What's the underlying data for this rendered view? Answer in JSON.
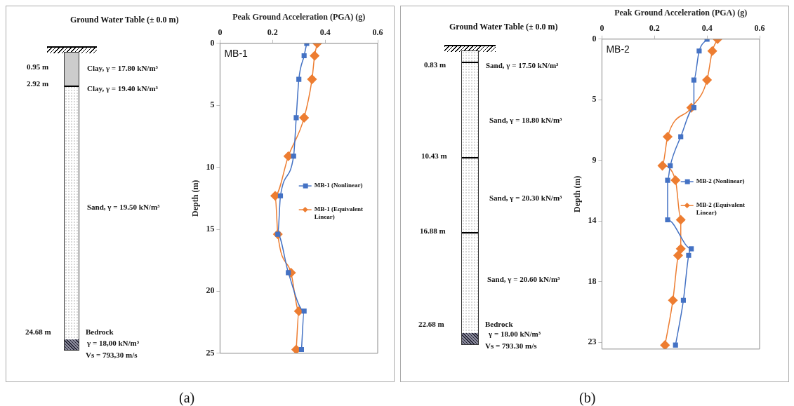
{
  "chart_data": [
    {
      "type": "other",
      "title": "Ground Water Table (± 0.0 m)",
      "annotations": [
        "0.95 m",
        "Clay, γ = 17.80 kN/m³",
        "2.92 m",
        "Clay, γ = 19.40 kN/m³",
        "Sand, γ = 19.50 kN/m³",
        "24.68 m",
        "Bedrock",
        "γ = 18,00 kN/m³",
        "Vs = 793,30 m/s",
        "(a)"
      ]
    },
    {
      "type": "line",
      "xlabel": "Peak Ground Acceleration (PGA) (g)",
      "ylabel": "Depth (m)",
      "xlim": [
        0,
        0.6
      ],
      "xticks": [
        0,
        0.2,
        0.4,
        0.6
      ],
      "ylim": [
        25,
        0
      ],
      "yticks": [
        0,
        5,
        10,
        15,
        20,
        25
      ],
      "grid": false,
      "legend": "right",
      "annotations": [
        "MB-1"
      ],
      "series": [
        {
          "name": "MB-1 (Nonlinear)",
          "color": "#4472c4",
          "marker": "square",
          "x": [
            0.33,
            0.32,
            0.3,
            0.29,
            0.28,
            0.23,
            0.22,
            0.26,
            0.32,
            0.31
          ],
          "values": [
            0,
            1.0,
            2.9,
            6.0,
            9.1,
            12.3,
            15.4,
            18.5,
            21.6,
            24.7
          ]
        },
        {
          "name": "MB-1 (Equivalent Linear)",
          "color": "#ed7d31",
          "marker": "diamond",
          "x": [
            0.37,
            0.36,
            0.35,
            0.32,
            0.26,
            0.21,
            0.22,
            0.27,
            0.3,
            0.29
          ],
          "values": [
            0,
            1.0,
            2.9,
            6.0,
            9.1,
            12.3,
            15.4,
            18.5,
            21.6,
            24.7
          ]
        }
      ]
    },
    {
      "type": "other",
      "title": "Ground Water Table (± 0.0 m)",
      "annotations": [
        "0.83 m",
        "Sand, γ = 17.50 kN/m³",
        "Sand, γ = 18.80 kN/m³",
        "10.43 m",
        "Sand, γ = 20.30 kN/m³",
        "16.88 m",
        "Sand, γ = 20.60 kN/m³",
        "22.68 m",
        "Bedrock",
        "γ = 18.00 kN/m³",
        "Vs = 793.30 m/s",
        "(b)"
      ]
    },
    {
      "type": "line",
      "xlabel": "Peak Ground Acceleration (PGA) (g)",
      "ylabel": "Depth (m)",
      "xlim": [
        0,
        0.6
      ],
      "xticks": [
        0,
        0.2,
        0.4,
        0.6
      ],
      "ylim": [
        23.5,
        0
      ],
      "yticks": [
        0,
        {
          "value": 4.6,
          "label": "5"
        },
        {
          "value": 9.2,
          "label": "9"
        },
        {
          "value": 13.8,
          "label": "14"
        },
        {
          "value": 18.4,
          "label": "18"
        },
        23
      ],
      "grid": false,
      "legend": "right",
      "annotations": [
        "MB-2"
      ],
      "series": [
        {
          "name": "MB-2 (Nonlinear)",
          "color": "#4472c4",
          "marker": "square",
          "x": [
            0.4,
            0.37,
            0.35,
            0.35,
            0.3,
            0.26,
            0.25,
            0.25,
            0.34,
            0.33,
            0.31,
            0.28
          ],
          "values": [
            0,
            0.9,
            3.1,
            5.2,
            7.4,
            9.6,
            10.7,
            13.7,
            15.9,
            16.4,
            19.8,
            23.2
          ]
        },
        {
          "name": "MB-2 (Equivalent Linear)",
          "color": "#ed7d31",
          "marker": "diamond",
          "x": [
            0.44,
            0.42,
            0.4,
            0.34,
            0.25,
            0.23,
            0.28,
            0.3,
            0.3,
            0.29,
            0.27,
            0.24
          ],
          "values": [
            0,
            0.9,
            3.1,
            5.2,
            7.4,
            9.6,
            10.7,
            13.7,
            15.9,
            16.4,
            19.8,
            23.2
          ]
        }
      ]
    }
  ]
}
